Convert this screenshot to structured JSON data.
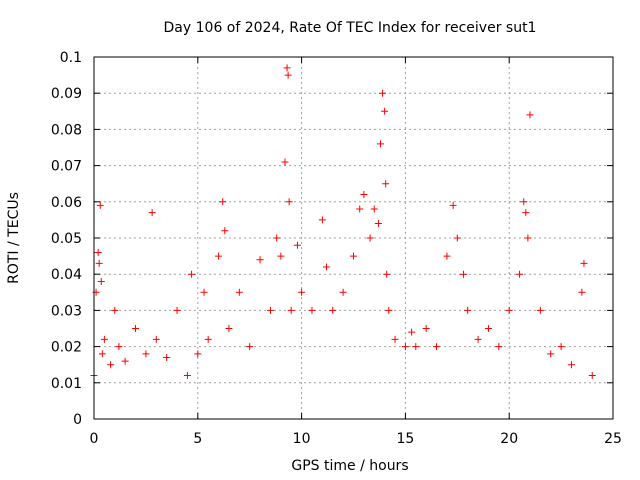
{
  "chart_data": {
    "type": "scatter",
    "title": "Day 106 of 2024, Rate Of TEC Index for receiver sut1",
    "xlabel": "GPS time / hours",
    "ylabel": "ROTI / TECUs",
    "xlim": [
      0,
      25
    ],
    "ylim": [
      0,
      0.1
    ],
    "x_ticks": [
      "0",
      "5",
      "10",
      "15",
      "20",
      "25"
    ],
    "y_ticks": [
      "0",
      "0.01",
      "0.02",
      "0.03",
      "0.04",
      "0.05",
      "0.06",
      "0.07",
      "0.08",
      "0.09",
      "0.1"
    ],
    "grid": true,
    "legend": "none",
    "marker": "+",
    "color": "#ff0000",
    "series": [
      {
        "x": [
          0.0,
          0.1,
          0.2,
          0.25,
          0.3,
          0.35,
          0.4,
          0.5,
          0.8,
          1.0,
          1.2,
          1.5,
          2.0,
          2.5,
          2.8,
          3.0,
          3.5,
          4.0,
          4.5,
          4.7,
          5.0,
          5.3,
          5.5,
          6.0,
          6.2,
          6.3,
          6.5,
          7.0,
          7.5,
          8.0,
          8.5,
          8.8,
          9.0,
          9.2,
          9.3,
          9.35,
          9.4,
          9.5,
          9.8,
          10.0,
          10.5,
          11.0,
          11.2,
          11.5,
          12.0,
          12.5,
          12.8,
          13.0,
          13.3,
          13.5,
          13.7,
          13.8,
          13.9,
          14.0,
          14.05,
          14.1,
          14.2,
          14.5,
          15.0,
          15.3,
          15.5,
          16.0,
          16.5,
          17.0,
          17.3,
          17.5,
          17.8,
          18.0,
          18.5,
          19.0,
          19.5,
          20.0,
          20.5,
          20.7,
          20.8,
          20.9,
          21.0,
          21.5,
          22.0,
          22.5,
          23.0,
          23.5,
          23.6,
          24.0
        ],
        "y": [
          0.012,
          0.035,
          0.046,
          0.043,
          0.059,
          0.038,
          0.018,
          0.022,
          0.015,
          0.03,
          0.02,
          0.016,
          0.025,
          0.018,
          0.057,
          0.022,
          0.017,
          0.03,
          0.012,
          0.04,
          0.018,
          0.035,
          0.022,
          0.045,
          0.06,
          0.052,
          0.025,
          0.035,
          0.02,
          0.044,
          0.03,
          0.05,
          0.045,
          0.071,
          0.097,
          0.095,
          0.06,
          0.03,
          0.048,
          0.035,
          0.03,
          0.055,
          0.042,
          0.03,
          0.035,
          0.045,
          0.058,
          0.062,
          0.05,
          0.058,
          0.054,
          0.076,
          0.09,
          0.085,
          0.065,
          0.04,
          0.03,
          0.022,
          0.02,
          0.024,
          0.02,
          0.025,
          0.02,
          0.045,
          0.059,
          0.05,
          0.04,
          0.03,
          0.022,
          0.025,
          0.02,
          0.03,
          0.04,
          0.06,
          0.057,
          0.05,
          0.084,
          0.03,
          0.018,
          0.02,
          0.015,
          0.035,
          0.043,
          0.012
        ]
      }
    ]
  }
}
